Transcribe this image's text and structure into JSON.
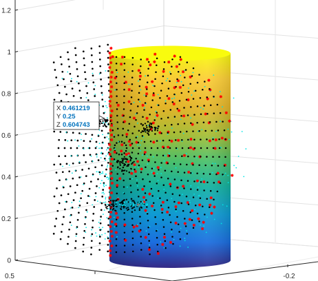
{
  "chart_data": {
    "type": "scatter",
    "title": "",
    "xlabel": "",
    "ylabel": "",
    "zlabel": "",
    "z_ticks": [
      {
        "label": "0",
        "value": 0
      },
      {
        "label": "0.2",
        "value": 0.2
      },
      {
        "label": "0.4",
        "value": 0.4
      },
      {
        "label": "0.6",
        "value": 0.6
      },
      {
        "label": "0.8",
        "value": 0.8
      },
      {
        "label": "1",
        "value": 1.0
      },
      {
        "label": "1.2",
        "value": 1.2
      }
    ],
    "x_ticks": [
      {
        "label": "0.5",
        "value": 0.5
      }
    ],
    "y_ticks": [
      {
        "label": "-0.2",
        "value": -0.2
      }
    ],
    "zlim": [
      0,
      1.2
    ],
    "grid": true,
    "legend": "none",
    "series": [
      {
        "kind": "surface",
        "shape": "cylinder",
        "colormap": "parula",
        "color_by": "z",
        "z_range": [
          0,
          1.0
        ],
        "top_color": "#f9fb0e",
        "bottom_color": "#352a87"
      },
      {
        "kind": "markers",
        "marker": "dot",
        "color": "#000000",
        "description": "face mesh points"
      },
      {
        "kind": "markers",
        "marker": "dot",
        "color": "#00e5e5",
        "description": "projected points"
      },
      {
        "kind": "markers",
        "marker": "asterisk",
        "color": "#ff0000",
        "description": "cylinder-mapped points"
      }
    ],
    "datatip": {
      "x_label": "X",
      "x_value": "0.461219",
      "y_label": "Y",
      "y_value": "0.25",
      "z_label": "Z",
      "z_value": "0.604743"
    }
  }
}
